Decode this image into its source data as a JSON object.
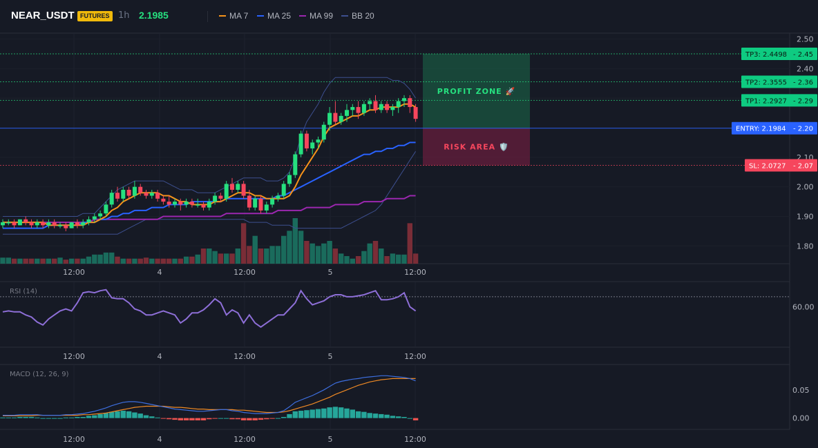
{
  "header": {
    "symbol": "NEAR_USDT",
    "badge": "FUTURES",
    "interval": "1h",
    "last_price": "2.1985",
    "indicators": [
      {
        "label": "MA 7",
        "color": "#f7931a"
      },
      {
        "label": "MA 25",
        "color": "#2962ff"
      },
      {
        "label": "MA 99",
        "color": "#9c27b0"
      },
      {
        "label": "BB 20",
        "color": "#3d4f8f"
      }
    ]
  },
  "colors": {
    "up": "#26e07f",
    "down": "#f6465d",
    "vol_up": "#1a6b5c",
    "vol_down": "#7a2d37",
    "rsi": "#8e6fd8",
    "macd": "#3d6fe0",
    "signal": "#f08a24",
    "hist_up": "#26a69a",
    "hist_down": "#ef5350"
  },
  "chart_data": [
    {
      "type": "candlestick",
      "pane": "price",
      "ylim": [
        1.74,
        2.52
      ],
      "y_ticks": [
        "2.50",
        "2.40",
        "2.30",
        "2.20",
        "2.10",
        "2.00",
        "1.90",
        "1.80"
      ],
      "x_ticks": [
        "12:00",
        "4",
        "12:00",
        "5",
        "12:00"
      ],
      "candles": [
        [
          1.87,
          1.89,
          1.86,
          1.88
        ],
        [
          1.88,
          1.89,
          1.87,
          1.88
        ],
        [
          1.88,
          1.89,
          1.86,
          1.87
        ],
        [
          1.87,
          1.89,
          1.87,
          1.89
        ],
        [
          1.89,
          1.9,
          1.87,
          1.88
        ],
        [
          1.88,
          1.89,
          1.86,
          1.87
        ],
        [
          1.87,
          1.89,
          1.86,
          1.88
        ],
        [
          1.88,
          1.89,
          1.86,
          1.87
        ],
        [
          1.87,
          1.89,
          1.86,
          1.88
        ],
        [
          1.88,
          1.89,
          1.86,
          1.87
        ],
        [
          1.87,
          1.88,
          1.86,
          1.87
        ],
        [
          1.87,
          1.88,
          1.85,
          1.86
        ],
        [
          1.86,
          1.88,
          1.86,
          1.88
        ],
        [
          1.88,
          1.89,
          1.86,
          1.87
        ],
        [
          1.87,
          1.89,
          1.86,
          1.88
        ],
        [
          1.88,
          1.9,
          1.87,
          1.89
        ],
        [
          1.89,
          1.91,
          1.88,
          1.9
        ],
        [
          1.9,
          1.92,
          1.89,
          1.91
        ],
        [
          1.91,
          1.95,
          1.9,
          1.94
        ],
        [
          1.94,
          1.99,
          1.93,
          1.98
        ],
        [
          1.98,
          2.0,
          1.95,
          1.96
        ],
        [
          1.96,
          2.0,
          1.95,
          1.99
        ],
        [
          1.99,
          2.0,
          1.96,
          1.97
        ],
        [
          1.97,
          2.02,
          1.96,
          2.0
        ],
        [
          2.0,
          2.01,
          1.97,
          1.98
        ],
        [
          1.98,
          1.99,
          1.96,
          1.97
        ],
        [
          1.97,
          1.99,
          1.96,
          1.98
        ],
        [
          1.98,
          1.99,
          1.95,
          1.96
        ],
        [
          1.96,
          1.97,
          1.94,
          1.95
        ],
        [
          1.95,
          1.97,
          1.93,
          1.94
        ],
        [
          1.94,
          1.96,
          1.93,
          1.95
        ],
        [
          1.95,
          1.96,
          1.92,
          1.94
        ],
        [
          1.94,
          1.96,
          1.93,
          1.95
        ],
        [
          1.95,
          1.96,
          1.93,
          1.94
        ],
        [
          1.94,
          1.96,
          1.93,
          1.94
        ],
        [
          1.94,
          1.95,
          1.92,
          1.93
        ],
        [
          1.93,
          1.96,
          1.92,
          1.95
        ],
        [
          1.95,
          1.98,
          1.94,
          1.97
        ],
        [
          1.97,
          1.98,
          1.95,
          1.96
        ],
        [
          1.96,
          2.02,
          1.95,
          2.01
        ],
        [
          2.01,
          2.03,
          1.98,
          1.99
        ],
        [
          1.99,
          2.02,
          1.98,
          2.01
        ],
        [
          2.01,
          2.02,
          1.96,
          1.97
        ],
        [
          1.97,
          1.99,
          1.92,
          1.93
        ],
        [
          1.93,
          1.97,
          1.92,
          1.96
        ],
        [
          1.96,
          1.97,
          1.91,
          1.92
        ],
        [
          1.92,
          1.95,
          1.91,
          1.94
        ],
        [
          1.94,
          1.97,
          1.93,
          1.96
        ],
        [
          1.96,
          1.98,
          1.95,
          1.97
        ],
        [
          1.97,
          2.02,
          1.96,
          2.01
        ],
        [
          2.01,
          2.05,
          2.0,
          2.04
        ],
        [
          2.04,
          2.12,
          2.03,
          2.11
        ],
        [
          2.11,
          2.19,
          2.1,
          2.18
        ],
        [
          2.18,
          2.19,
          2.12,
          2.13
        ],
        [
          2.13,
          2.16,
          2.11,
          2.15
        ],
        [
          2.15,
          2.17,
          2.13,
          2.16
        ],
        [
          2.16,
          2.22,
          2.15,
          2.21
        ],
        [
          2.21,
          2.27,
          2.19,
          2.25
        ],
        [
          2.25,
          2.29,
          2.21,
          2.22
        ],
        [
          2.22,
          2.25,
          2.21,
          2.24
        ],
        [
          2.24,
          2.28,
          2.22,
          2.26
        ],
        [
          2.26,
          2.28,
          2.24,
          2.27
        ],
        [
          2.27,
          2.29,
          2.23,
          2.25
        ],
        [
          2.25,
          2.29,
          2.24,
          2.28
        ],
        [
          2.28,
          2.3,
          2.26,
          2.29
        ],
        [
          2.29,
          2.31,
          2.25,
          2.26
        ],
        [
          2.26,
          2.29,
          2.25,
          2.28
        ],
        [
          2.28,
          2.29,
          2.25,
          2.26
        ],
        [
          2.26,
          2.28,
          2.24,
          2.27
        ],
        [
          2.27,
          2.3,
          2.25,
          2.29
        ],
        [
          2.29,
          2.31,
          2.27,
          2.3
        ],
        [
          2.3,
          2.31,
          2.25,
          2.27
        ],
        [
          2.27,
          2.28,
          2.22,
          2.23
        ]
      ],
      "volume": [
        12,
        12,
        10,
        10,
        10,
        10,
        10,
        10,
        10,
        10,
        12,
        8,
        10,
        10,
        10,
        14,
        18,
        18,
        22,
        22,
        14,
        10,
        10,
        10,
        10,
        12,
        10,
        10,
        10,
        10,
        10,
        10,
        14,
        14,
        18,
        30,
        30,
        25,
        20,
        20,
        20,
        30,
        80,
        35,
        55,
        30,
        30,
        35,
        35,
        55,
        65,
        90,
        65,
        45,
        40,
        35,
        40,
        45,
        30,
        20,
        15,
        10,
        15,
        25,
        40,
        45,
        30,
        15,
        20,
        18,
        18,
        80,
        20
      ],
      "ma7": [
        1.88,
        1.88,
        1.88,
        1.88,
        1.88,
        1.88,
        1.88,
        1.88,
        1.87,
        1.87,
        1.87,
        1.87,
        1.87,
        1.87,
        1.87,
        1.88,
        1.88,
        1.89,
        1.9,
        1.92,
        1.93,
        1.95,
        1.96,
        1.97,
        1.98,
        1.98,
        1.98,
        1.98,
        1.97,
        1.97,
        1.96,
        1.95,
        1.95,
        1.94,
        1.94,
        1.94,
        1.94,
        1.95,
        1.95,
        1.96,
        1.97,
        1.98,
        1.98,
        1.98,
        1.97,
        1.97,
        1.96,
        1.96,
        1.96,
        1.96,
        1.97,
        2.0,
        2.04,
        2.07,
        2.1,
        2.13,
        2.17,
        2.2,
        2.21,
        2.22,
        2.23,
        2.24,
        2.24,
        2.25,
        2.26,
        2.26,
        2.27,
        2.27,
        2.27,
        2.27,
        2.28,
        2.28,
        2.27
      ],
      "ma25": [
        1.86,
        1.86,
        1.86,
        1.86,
        1.86,
        1.86,
        1.86,
        1.86,
        1.87,
        1.87,
        1.87,
        1.87,
        1.87,
        1.87,
        1.88,
        1.88,
        1.88,
        1.89,
        1.89,
        1.9,
        1.9,
        1.91,
        1.91,
        1.92,
        1.92,
        1.92,
        1.93,
        1.93,
        1.93,
        1.94,
        1.94,
        1.94,
        1.94,
        1.95,
        1.95,
        1.95,
        1.95,
        1.95,
        1.95,
        1.96,
        1.96,
        1.96,
        1.96,
        1.96,
        1.96,
        1.96,
        1.96,
        1.96,
        1.97,
        1.97,
        1.98,
        1.99,
        2.0,
        2.01,
        2.02,
        2.03,
        2.04,
        2.05,
        2.06,
        2.07,
        2.08,
        2.09,
        2.1,
        2.11,
        2.11,
        2.12,
        2.12,
        2.13,
        2.13,
        2.14,
        2.14,
        2.15,
        2.15
      ],
      "ma99": [
        1.88,
        1.88,
        1.88,
        1.88,
        1.88,
        1.88,
        1.88,
        1.88,
        1.88,
        1.88,
        1.88,
        1.88,
        1.88,
        1.88,
        1.88,
        1.88,
        1.89,
        1.89,
        1.89,
        1.89,
        1.89,
        1.89,
        1.89,
        1.89,
        1.89,
        1.89,
        1.89,
        1.89,
        1.9,
        1.9,
        1.9,
        1.9,
        1.9,
        1.9,
        1.9,
        1.9,
        1.9,
        1.9,
        1.9,
        1.91,
        1.91,
        1.91,
        1.91,
        1.91,
        1.91,
        1.91,
        1.91,
        1.91,
        1.92,
        1.92,
        1.92,
        1.92,
        1.92,
        1.93,
        1.93,
        1.93,
        1.93,
        1.93,
        1.94,
        1.94,
        1.94,
        1.94,
        1.94,
        1.95,
        1.95,
        1.95,
        1.95,
        1.96,
        1.96,
        1.96,
        1.96,
        1.97,
        1.97
      ],
      "bb_upper": [
        1.9,
        1.9,
        1.9,
        1.9,
        1.9,
        1.9,
        1.9,
        1.9,
        1.9,
        1.9,
        1.9,
        1.9,
        1.9,
        1.9,
        1.91,
        1.91,
        1.91,
        1.93,
        1.95,
        1.97,
        1.99,
        2.0,
        2.01,
        2.02,
        2.02,
        2.02,
        2.02,
        2.02,
        2.02,
        2.01,
        2.0,
        1.99,
        1.99,
        1.99,
        1.98,
        1.98,
        1.98,
        1.98,
        1.99,
        2.0,
        2.01,
        2.02,
        2.03,
        2.03,
        2.03,
        2.03,
        2.02,
        2.02,
        2.02,
        2.03,
        2.05,
        2.1,
        2.17,
        2.22,
        2.25,
        2.28,
        2.32,
        2.35,
        2.37,
        2.37,
        2.37,
        2.37,
        2.37,
        2.37,
        2.37,
        2.37,
        2.37,
        2.37,
        2.36,
        2.36,
        2.35,
        2.33,
        2.3
      ],
      "bb_lower": [
        1.84,
        1.84,
        1.84,
        1.84,
        1.84,
        1.84,
        1.84,
        1.84,
        1.84,
        1.84,
        1.84,
        1.84,
        1.84,
        1.84,
        1.84,
        1.84,
        1.84,
        1.84,
        1.84,
        1.84,
        1.84,
        1.85,
        1.86,
        1.87,
        1.88,
        1.89,
        1.89,
        1.89,
        1.89,
        1.89,
        1.89,
        1.89,
        1.89,
        1.89,
        1.89,
        1.89,
        1.89,
        1.89,
        1.89,
        1.89,
        1.89,
        1.89,
        1.89,
        1.88,
        1.88,
        1.88,
        1.88,
        1.87,
        1.87,
        1.87,
        1.87,
        1.86,
        1.86,
        1.86,
        1.86,
        1.86,
        1.86,
        1.86,
        1.86,
        1.86,
        1.87,
        1.88,
        1.89,
        1.9,
        1.91,
        1.92,
        1.94,
        1.97,
        2.0,
        2.03,
        2.06,
        2.09,
        2.12
      ],
      "levels": [
        {
          "label": "TP3: 2.4498",
          "axis": "2.45",
          "value": 2.4498,
          "kind": "tp"
        },
        {
          "label": "TP2: 2.3555",
          "axis": "2.36",
          "value": 2.3555,
          "kind": "tp"
        },
        {
          "label": "TP1: 2.2927",
          "axis": "2.29",
          "value": 2.2927,
          "kind": "tp"
        },
        {
          "label": "ENTRY: 2.1984",
          "axis": "2.20",
          "value": 2.1984,
          "kind": "entry"
        },
        {
          "label": "SL: 2.0727",
          "axis": "2.07",
          "value": 2.0727,
          "kind": "sl"
        }
      ],
      "zones": {
        "profit_label": "PROFIT ZONE 🚀",
        "risk_label": "RISK AREA 🛡️"
      }
    },
    {
      "type": "line",
      "pane": "rsi",
      "title": "RSI (14)",
      "ylim": [
        20,
        85
      ],
      "y_ticks": [
        "60.00"
      ],
      "overbought": 70,
      "x_ticks": [
        "12:00",
        "4",
        "12:00",
        "5",
        "12:00"
      ],
      "values": [
        55,
        56,
        55,
        55,
        52,
        50,
        45,
        42,
        48,
        52,
        56,
        58,
        56,
        64,
        74,
        75,
        74,
        76,
        77,
        69,
        68,
        68,
        64,
        58,
        56,
        52,
        52,
        54,
        56,
        54,
        52,
        44,
        48,
        54,
        54,
        57,
        62,
        68,
        64,
        52,
        57,
        54,
        44,
        52,
        44,
        40,
        44,
        48,
        52,
        52,
        58,
        64,
        76,
        68,
        62,
        64,
        66,
        70,
        72,
        72,
        70,
        70,
        71,
        72,
        74,
        76,
        67,
        67,
        68,
        70,
        74,
        60,
        56
      ]
    },
    {
      "type": "line",
      "pane": "macd",
      "title": "MACD (12, 26, 9)",
      "ylim": [
        -0.02,
        0.095
      ],
      "y_ticks": [
        "0.05",
        "0.00"
      ],
      "x_ticks": [
        "12:00",
        "4",
        "12:00",
        "5",
        "12:00"
      ],
      "macd": [
        0.005,
        0.005,
        0.005,
        0.006,
        0.006,
        0.006,
        0.006,
        0.005,
        0.005,
        0.005,
        0.005,
        0.006,
        0.006,
        0.007,
        0.008,
        0.01,
        0.012,
        0.015,
        0.018,
        0.022,
        0.025,
        0.028,
        0.029,
        0.029,
        0.028,
        0.026,
        0.024,
        0.022,
        0.02,
        0.018,
        0.016,
        0.015,
        0.014,
        0.013,
        0.012,
        0.012,
        0.013,
        0.014,
        0.015,
        0.015,
        0.013,
        0.012,
        0.01,
        0.009,
        0.008,
        0.008,
        0.008,
        0.009,
        0.01,
        0.013,
        0.02,
        0.028,
        0.032,
        0.036,
        0.04,
        0.045,
        0.05,
        0.056,
        0.062,
        0.065,
        0.067,
        0.069,
        0.07,
        0.072,
        0.073,
        0.074,
        0.075,
        0.075,
        0.074,
        0.073,
        0.072,
        0.07,
        0.066
      ],
      "signal": [
        0.004,
        0.004,
        0.004,
        0.004,
        0.004,
        0.004,
        0.005,
        0.005,
        0.005,
        0.005,
        0.005,
        0.005,
        0.005,
        0.005,
        0.006,
        0.006,
        0.007,
        0.008,
        0.009,
        0.011,
        0.013,
        0.015,
        0.017,
        0.019,
        0.02,
        0.021,
        0.021,
        0.021,
        0.021,
        0.02,
        0.019,
        0.019,
        0.018,
        0.017,
        0.016,
        0.016,
        0.015,
        0.015,
        0.015,
        0.015,
        0.015,
        0.014,
        0.014,
        0.013,
        0.012,
        0.011,
        0.01,
        0.01,
        0.01,
        0.011,
        0.013,
        0.016,
        0.019,
        0.022,
        0.025,
        0.029,
        0.033,
        0.037,
        0.042,
        0.046,
        0.05,
        0.054,
        0.058,
        0.061,
        0.064,
        0.066,
        0.068,
        0.069,
        0.07,
        0.07,
        0.07,
        0.07,
        0.07
      ],
      "hist": [
        0.001,
        0.001,
        0.001,
        0.002,
        0.002,
        0.002,
        0.001,
        0,
        0,
        0,
        0,
        0.001,
        0.001,
        0.002,
        0.002,
        0.004,
        0.005,
        0.007,
        0.009,
        0.011,
        0.012,
        0.013,
        0.012,
        0.01,
        0.008,
        0.005,
        0.003,
        0.001,
        -0.001,
        -0.002,
        -0.003,
        -0.004,
        -0.004,
        -0.004,
        -0.004,
        -0.004,
        -0.002,
        -0.001,
        0,
        0,
        -0.002,
        -0.002,
        -0.004,
        -0.004,
        -0.004,
        -0.003,
        -0.002,
        -0.001,
        0,
        0.002,
        0.007,
        0.012,
        0.013,
        0.014,
        0.015,
        0.016,
        0.017,
        0.019,
        0.02,
        0.019,
        0.017,
        0.015,
        0.012,
        0.011,
        0.009,
        0.008,
        0.007,
        0.006,
        0.004,
        0.003,
        0.002,
        0,
        -0.004
      ]
    }
  ]
}
